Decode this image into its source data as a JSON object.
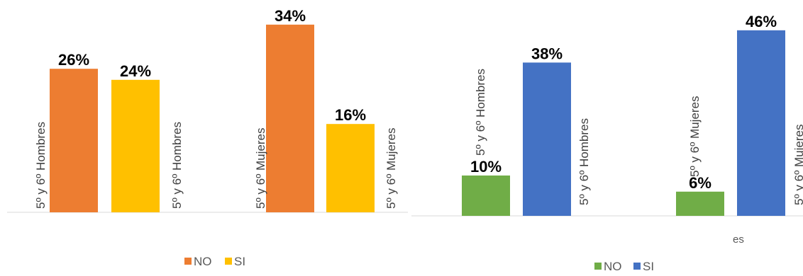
{
  "chart_data": [
    {
      "type": "bar",
      "categories": [
        "5º y 6º Hombres",
        "5º y 6º Mujeres"
      ],
      "series": [
        {
          "name": "NO",
          "values": [
            26,
            34
          ],
          "color": "#ED7D31"
        },
        {
          "name": "SI",
          "values": [
            24,
            16
          ],
          "color": "#FFC000"
        }
      ],
      "value_labels": [
        [
          "26%",
          "34%"
        ],
        [
          "24%",
          "16%"
        ]
      ],
      "rotated_labels": [
        "5º y 6º Hombres",
        "5º y 6º Hombres",
        "5º y 6º Mujeres",
        "5º y 6º Mujeres"
      ],
      "legend": {
        "position": "bottom",
        "entries": [
          "NO",
          "SI"
        ]
      },
      "ylim": [
        0,
        36
      ],
      "grid": false
    },
    {
      "type": "bar",
      "categories": [
        "5º y 6º Hombres",
        "5º y 6º Mujeres"
      ],
      "series": [
        {
          "name": "NO",
          "values": [
            10,
            6
          ],
          "color": "#70AD47"
        },
        {
          "name": "SI",
          "values": [
            38,
            46
          ],
          "color": "#4472C4"
        }
      ],
      "value_labels": [
        [
          "10%",
          "6%"
        ],
        [
          "38%",
          "46%"
        ]
      ],
      "rotated_labels": [
        "5º y 6º Hombres",
        "5º y 6º Hombres",
        "5º y 6º Mujeres",
        "5º y 6º Mujeres"
      ],
      "extra_text": "es",
      "legend": {
        "position": "bottom",
        "entries": [
          "NO",
          "SI"
        ]
      },
      "ylim": [
        0,
        48
      ],
      "grid": false
    }
  ]
}
